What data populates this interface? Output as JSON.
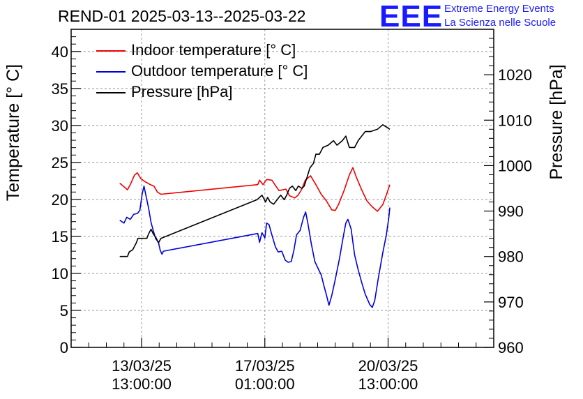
{
  "header": {
    "title": "REND-01 2025-03-13--2025-03-22",
    "logo_text": "EEE",
    "logo_line1": "Extreme Energy Events",
    "logo_line2": "La Scienza nelle Scuole"
  },
  "colors": {
    "indoor": "#ee0000",
    "outdoor": "#0000dd",
    "pressure": "#000000",
    "logo": "#1a1aff"
  },
  "chart_data": {
    "type": "line",
    "title": "REND-01 2025-03-13--2025-03-22",
    "ylabel": "Temperature [° C]",
    "y2label": "Pressure [hPa]",
    "xlabel": "",
    "ylim": [
      0,
      43
    ],
    "y2lim": [
      960,
      1030
    ],
    "yticks": [
      0,
      5,
      10,
      15,
      20,
      25,
      30,
      35,
      40
    ],
    "y2ticks": [
      960,
      970,
      980,
      990,
      1000,
      1010,
      1020
    ],
    "xlim": [
      -2.0,
      10.0
    ],
    "x_unit": "days since 13/03/25 13:00:00",
    "xticks": [
      {
        "x": 0,
        "label_date": "13/03/25",
        "label_time": "13:00:00"
      },
      {
        "x": 3.5,
        "label_date": "17/03/25",
        "label_time": "01:00:00"
      },
      {
        "x": 7.0,
        "label_date": "20/03/25",
        "label_time": "13:00:00"
      }
    ],
    "grid": true,
    "legend_position": "top-left",
    "series": [
      {
        "name": "Indoor temperature [° C]",
        "axis": "left",
        "color": "#ee0000",
        "points": [
          [
            -0.62,
            22.2
          ],
          [
            -0.52,
            21.8
          ],
          [
            -0.4,
            21.3
          ],
          [
            -0.3,
            22.2
          ],
          [
            -0.2,
            23.3
          ],
          [
            -0.12,
            23.6
          ],
          [
            -0.02,
            22.8
          ],
          [
            0.1,
            22.4
          ],
          [
            0.25,
            22.0
          ],
          [
            0.35,
            21.8
          ],
          [
            0.45,
            21.0
          ],
          [
            0.55,
            20.7
          ],
          [
            3.3,
            22.0
          ],
          [
            3.35,
            22.6
          ],
          [
            3.45,
            22.0
          ],
          [
            3.55,
            22.7
          ],
          [
            3.7,
            22.6
          ],
          [
            3.8,
            21.9
          ],
          [
            3.9,
            21.2
          ],
          [
            4.1,
            21.4
          ],
          [
            4.2,
            20.5
          ],
          [
            4.35,
            20.2
          ],
          [
            4.45,
            20.6
          ],
          [
            4.55,
            21.4
          ],
          [
            4.65,
            22.6
          ],
          [
            4.8,
            23.2
          ],
          [
            4.95,
            22.0
          ],
          [
            5.1,
            20.7
          ],
          [
            5.25,
            19.8
          ],
          [
            5.4,
            18.6
          ],
          [
            5.5,
            18.5
          ],
          [
            5.6,
            19.4
          ],
          [
            5.75,
            21.2
          ],
          [
            5.9,
            23.3
          ],
          [
            6.0,
            24.3
          ],
          [
            6.1,
            23.0
          ],
          [
            6.25,
            21.3
          ],
          [
            6.4,
            19.8
          ],
          [
            6.55,
            19.0
          ],
          [
            6.7,
            18.4
          ],
          [
            6.85,
            19.3
          ],
          [
            6.95,
            20.6
          ],
          [
            7.05,
            22.0
          ]
        ]
      },
      {
        "name": "Outdoor temperature [° C]",
        "axis": "left",
        "color": "#0000dd",
        "points": [
          [
            -0.62,
            17.2
          ],
          [
            -0.5,
            16.8
          ],
          [
            -0.42,
            17.6
          ],
          [
            -0.32,
            17.3
          ],
          [
            -0.22,
            18.0
          ],
          [
            -0.12,
            18.1
          ],
          [
            -0.05,
            18.5
          ],
          [
            0.02,
            20.8
          ],
          [
            0.07,
            21.8
          ],
          [
            0.12,
            20.6
          ],
          [
            0.2,
            18.8
          ],
          [
            0.27,
            16.9
          ],
          [
            0.33,
            15.8
          ],
          [
            0.4,
            14.7
          ],
          [
            0.48,
            14.2
          ],
          [
            0.53,
            13.1
          ],
          [
            0.58,
            12.6
          ],
          [
            0.62,
            13.0
          ],
          [
            3.3,
            15.4
          ],
          [
            3.35,
            14.2
          ],
          [
            3.42,
            15.5
          ],
          [
            3.5,
            14.8
          ],
          [
            3.55,
            16.8
          ],
          [
            3.62,
            16.6
          ],
          [
            3.7,
            15.2
          ],
          [
            3.8,
            13.6
          ],
          [
            3.88,
            12.9
          ],
          [
            3.98,
            13.0
          ],
          [
            4.08,
            11.8
          ],
          [
            4.16,
            11.5
          ],
          [
            4.25,
            11.6
          ],
          [
            4.32,
            13.0
          ],
          [
            4.4,
            15.2
          ],
          [
            4.5,
            15.8
          ],
          [
            4.6,
            17.6
          ],
          [
            4.66,
            18.3
          ],
          [
            4.72,
            16.8
          ],
          [
            4.82,
            14.0
          ],
          [
            4.92,
            11.6
          ],
          [
            5.02,
            10.6
          ],
          [
            5.1,
            9.8
          ],
          [
            5.18,
            8.3
          ],
          [
            5.26,
            6.9
          ],
          [
            5.32,
            5.7
          ],
          [
            5.4,
            7.0
          ],
          [
            5.5,
            9.2
          ],
          [
            5.62,
            12.0
          ],
          [
            5.72,
            14.8
          ],
          [
            5.8,
            16.8
          ],
          [
            5.86,
            17.3
          ],
          [
            5.95,
            16.0
          ],
          [
            6.05,
            12.5
          ],
          [
            6.15,
            10.5
          ],
          [
            6.25,
            8.8
          ],
          [
            6.35,
            7.2
          ],
          [
            6.48,
            5.8
          ],
          [
            6.55,
            5.4
          ],
          [
            6.62,
            6.3
          ],
          [
            6.72,
            9.3
          ],
          [
            6.85,
            12.8
          ],
          [
            6.95,
            15.2
          ],
          [
            7.02,
            17.5
          ],
          [
            7.05,
            18.9
          ]
        ]
      },
      {
        "name": "Pressure [hPa]",
        "axis": "right",
        "color": "#000000",
        "points": [
          [
            -0.62,
            980.0
          ],
          [
            -0.4,
            980.0
          ],
          [
            -0.35,
            981.0
          ],
          [
            -0.25,
            981.5
          ],
          [
            -0.15,
            983.0
          ],
          [
            -0.1,
            984.0
          ],
          [
            0.05,
            984.0
          ],
          [
            0.15,
            984.0
          ],
          [
            0.2,
            985.0
          ],
          [
            0.27,
            986.0
          ],
          [
            0.33,
            985.0
          ],
          [
            0.42,
            984.0
          ],
          [
            0.48,
            983.0
          ],
          [
            0.55,
            984.0
          ],
          [
            3.28,
            992.5
          ],
          [
            3.35,
            993.0
          ],
          [
            3.42,
            993.5
          ],
          [
            3.52,
            992.0
          ],
          [
            3.58,
            993.0
          ],
          [
            3.65,
            992.0
          ],
          [
            3.75,
            991.5
          ],
          [
            3.85,
            992.5
          ],
          [
            3.95,
            993.5
          ],
          [
            4.05,
            992.5
          ],
          [
            4.12,
            993.5
          ],
          [
            4.2,
            995.0
          ],
          [
            4.28,
            995.5
          ],
          [
            4.38,
            994.5
          ],
          [
            4.45,
            995.5
          ],
          [
            4.55,
            995.0
          ],
          [
            4.62,
            995.5
          ],
          [
            4.7,
            997.5
          ],
          [
            4.78,
            999.5
          ],
          [
            4.88,
            1000.5
          ],
          [
            4.95,
            1002.5
          ],
          [
            5.05,
            1002.5
          ],
          [
            5.15,
            1004.0
          ],
          [
            5.3,
            1004.5
          ],
          [
            5.45,
            1005.5
          ],
          [
            5.55,
            1004.5
          ],
          [
            5.7,
            1005.5
          ],
          [
            5.8,
            1006.5
          ],
          [
            5.9,
            1004.0
          ],
          [
            6.05,
            1004.0
          ],
          [
            6.15,
            1005.5
          ],
          [
            6.25,
            1006.5
          ],
          [
            6.35,
            1007.5
          ],
          [
            6.5,
            1007.5
          ],
          [
            6.7,
            1008.0
          ],
          [
            6.85,
            1009.0
          ],
          [
            6.95,
            1008.5
          ],
          [
            7.05,
            1008.0
          ]
        ]
      }
    ]
  }
}
